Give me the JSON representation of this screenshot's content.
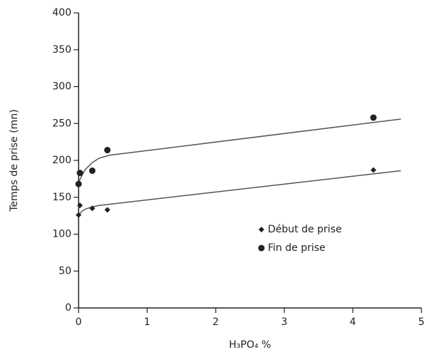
{
  "chart_data": {
    "type": "scatter",
    "x_label": "H₃PO₄ %",
    "y_label": "Temps de prise (mn)",
    "xlim": [
      0,
      5
    ],
    "xticks": [
      0,
      1,
      2,
      3,
      4,
      5
    ],
    "ylim": [
      0,
      400
    ],
    "yticks": [
      0,
      50,
      100,
      150,
      200,
      250,
      300,
      350,
      400
    ],
    "legend": "right",
    "series": [
      {
        "name": "Début de prise",
        "color": "#222222",
        "marker": "diamond",
        "x": [
          0,
          0.02,
          0.2,
          0.42,
          4.3
        ],
        "values": [
          126,
          139,
          135,
          133,
          187
        ]
      },
      {
        "name": "Fin de prise",
        "color": "#222222",
        "marker": "circle",
        "x": [
          0,
          0.02,
          0.2,
          0.42,
          4.3
        ],
        "values": [
          168,
          183,
          186,
          214,
          258
        ]
      }
    ],
    "fits": [
      {
        "color": "#555555",
        "x": [
          0,
          0.05,
          0.1,
          0.2,
          0.3,
          0.4,
          4.7
        ],
        "values": [
          126,
          131,
          134,
          137,
          139,
          140,
          186
        ]
      },
      {
        "color": "#555555",
        "x": [
          0,
          0.05,
          0.1,
          0.2,
          0.3,
          0.45,
          4.7
        ],
        "values": [
          170,
          180,
          188,
          197,
          203,
          207,
          256
        ]
      }
    ]
  }
}
